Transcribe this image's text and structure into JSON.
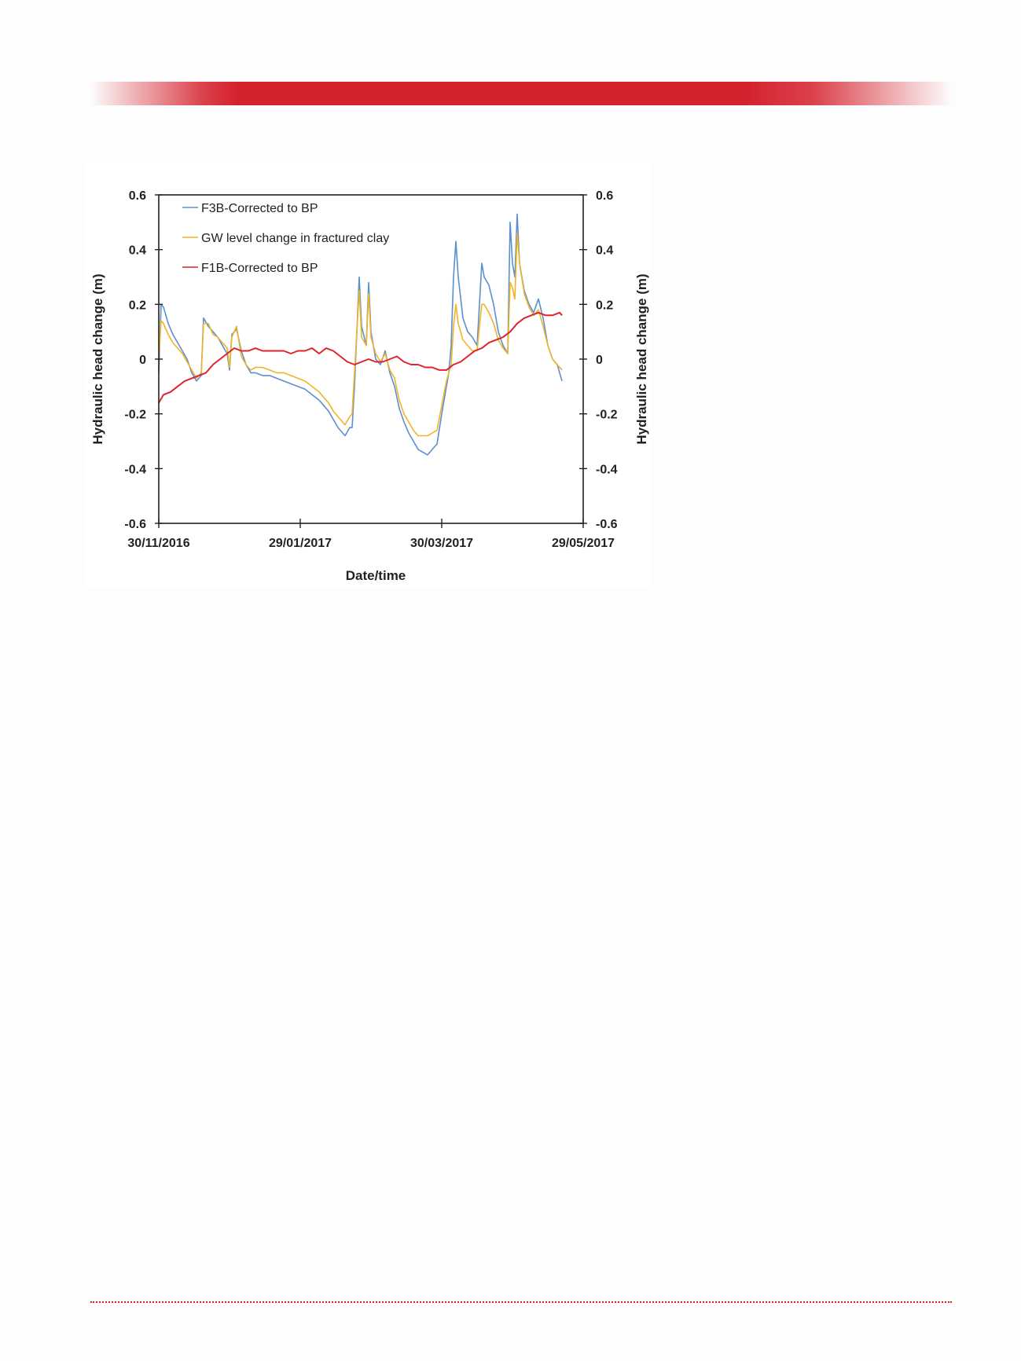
{
  "page": {
    "accent_color": "#d4222d"
  },
  "chart_data": {
    "type": "line",
    "title": "",
    "xlabel": "Date/time",
    "ylabel": "Hydraulic head change (m)",
    "y2label": "Hydraulic head change (m)",
    "x_ticks": [
      "30/11/2016",
      "29/01/2017",
      "30/03/2017",
      "29/05/2017"
    ],
    "x_range": [
      "2016-11-30",
      "2017-05-29"
    ],
    "ylim": [
      -0.6,
      0.6
    ],
    "y_ticks": [
      "0.6",
      "0.4",
      "0.2",
      "0",
      "-0.2",
      "-0.4",
      "-0.6"
    ],
    "y2_ticks": [
      "0.6",
      "0.4",
      "0.2",
      "0",
      "-0.2",
      "-0.4",
      "-0.6"
    ],
    "grid": false,
    "legend_position": "top-left",
    "series": [
      {
        "name": "F3B-Corrected to BP",
        "color": "#5b8fd0",
        "points": [
          [
            "2016-11-30",
            -0.05
          ],
          [
            "2016-12-01",
            0.2
          ],
          [
            "2016-12-02",
            0.19
          ],
          [
            "2016-12-04",
            0.13
          ],
          [
            "2016-12-06",
            0.09
          ],
          [
            "2016-12-08",
            0.06
          ],
          [
            "2016-12-10",
            0.03
          ],
          [
            "2016-12-12",
            0.0
          ],
          [
            "2016-12-14",
            -0.05
          ],
          [
            "2016-12-16",
            -0.08
          ],
          [
            "2016-12-18",
            -0.06
          ],
          [
            "2016-12-19",
            0.15
          ],
          [
            "2016-12-21",
            0.12
          ],
          [
            "2016-12-23",
            0.1
          ],
          [
            "2016-12-25",
            0.08
          ],
          [
            "2016-12-27",
            0.05
          ],
          [
            "2016-12-29",
            0.02
          ],
          [
            "2016-12-30",
            -0.04
          ],
          [
            "2016-12-31",
            0.09
          ],
          [
            "2017-01-02",
            0.11
          ],
          [
            "2017-01-04",
            0.03
          ],
          [
            "2017-01-06",
            -0.02
          ],
          [
            "2017-01-08",
            -0.05
          ],
          [
            "2017-01-10",
            -0.05
          ],
          [
            "2017-01-13",
            -0.06
          ],
          [
            "2017-01-16",
            -0.06
          ],
          [
            "2017-01-19",
            -0.07
          ],
          [
            "2017-01-22",
            -0.08
          ],
          [
            "2017-01-25",
            -0.09
          ],
          [
            "2017-01-28",
            -0.1
          ],
          [
            "2017-01-31",
            -0.11
          ],
          [
            "2017-02-03",
            -0.13
          ],
          [
            "2017-02-06",
            -0.15
          ],
          [
            "2017-02-08",
            -0.17
          ],
          [
            "2017-02-10",
            -0.19
          ],
          [
            "2017-02-12",
            -0.22
          ],
          [
            "2017-02-14",
            -0.25
          ],
          [
            "2017-02-16",
            -0.27
          ],
          [
            "2017-02-17",
            -0.28
          ],
          [
            "2017-02-19",
            -0.25
          ],
          [
            "2017-02-20",
            -0.25
          ],
          [
            "2017-02-21",
            -0.1
          ],
          [
            "2017-02-22",
            0.1
          ],
          [
            "2017-02-23",
            0.3
          ],
          [
            "2017-02-24",
            0.12
          ],
          [
            "2017-02-26",
            0.05
          ],
          [
            "2017-02-27",
            0.28
          ],
          [
            "2017-02-28",
            0.1
          ],
          [
            "2017-03-02",
            0.0
          ],
          [
            "2017-03-04",
            -0.02
          ],
          [
            "2017-03-06",
            0.03
          ],
          [
            "2017-03-08",
            -0.05
          ],
          [
            "2017-03-10",
            -0.1
          ],
          [
            "2017-03-12",
            -0.18
          ],
          [
            "2017-03-14",
            -0.23
          ],
          [
            "2017-03-16",
            -0.27
          ],
          [
            "2017-03-18",
            -0.3
          ],
          [
            "2017-03-20",
            -0.33
          ],
          [
            "2017-03-22",
            -0.34
          ],
          [
            "2017-03-24",
            -0.35
          ],
          [
            "2017-03-26",
            -0.33
          ],
          [
            "2017-03-28",
            -0.31
          ],
          [
            "2017-03-30",
            -0.2
          ],
          [
            "2017-04-01",
            -0.1
          ],
          [
            "2017-04-02",
            -0.05
          ],
          [
            "2017-04-03",
            0.05
          ],
          [
            "2017-04-04",
            0.3
          ],
          [
            "2017-04-05",
            0.43
          ],
          [
            "2017-04-06",
            0.3
          ],
          [
            "2017-04-08",
            0.15
          ],
          [
            "2017-04-10",
            0.1
          ],
          [
            "2017-04-12",
            0.08
          ],
          [
            "2017-04-14",
            0.05
          ],
          [
            "2017-04-15",
            0.2
          ],
          [
            "2017-04-16",
            0.35
          ],
          [
            "2017-04-17",
            0.3
          ],
          [
            "2017-04-19",
            0.27
          ],
          [
            "2017-04-21",
            0.2
          ],
          [
            "2017-04-23",
            0.1
          ],
          [
            "2017-04-25",
            0.05
          ],
          [
            "2017-04-27",
            0.02
          ],
          [
            "2017-04-28",
            0.5
          ],
          [
            "2017-04-29",
            0.35
          ],
          [
            "2017-04-30",
            0.3
          ],
          [
            "2017-05-01",
            0.53
          ],
          [
            "2017-05-02",
            0.35
          ],
          [
            "2017-05-04",
            0.25
          ],
          [
            "2017-05-06",
            0.2
          ],
          [
            "2017-05-08",
            0.17
          ],
          [
            "2017-05-10",
            0.22
          ],
          [
            "2017-05-12",
            0.15
          ],
          [
            "2017-05-14",
            0.05
          ],
          [
            "2017-05-16",
            0.0
          ],
          [
            "2017-05-18",
            -0.02
          ],
          [
            "2017-05-20",
            -0.08
          ]
        ]
      },
      {
        "name": "GW level change in fractured clay",
        "color": "#f0b429",
        "points": [
          [
            "2016-11-30",
            0.0
          ],
          [
            "2016-12-01",
            0.14
          ],
          [
            "2016-12-02",
            0.13
          ],
          [
            "2016-12-04",
            0.09
          ],
          [
            "2016-12-06",
            0.06
          ],
          [
            "2016-12-08",
            0.04
          ],
          [
            "2016-12-10",
            0.02
          ],
          [
            "2016-12-12",
            -0.01
          ],
          [
            "2016-12-14",
            -0.04
          ],
          [
            "2016-12-16",
            -0.07
          ],
          [
            "2016-12-18",
            -0.05
          ],
          [
            "2016-12-19",
            0.13
          ],
          [
            "2016-12-21",
            0.13
          ],
          [
            "2016-12-23",
            0.09
          ],
          [
            "2016-12-25",
            0.08
          ],
          [
            "2016-12-27",
            0.06
          ],
          [
            "2016-12-29",
            0.04
          ],
          [
            "2016-12-30",
            -0.03
          ],
          [
            "2016-12-31",
            0.08
          ],
          [
            "2017-01-02",
            0.12
          ],
          [
            "2017-01-04",
            0.01
          ],
          [
            "2017-01-06",
            -0.02
          ],
          [
            "2017-01-08",
            -0.04
          ],
          [
            "2017-01-10",
            -0.03
          ],
          [
            "2017-01-13",
            -0.03
          ],
          [
            "2017-01-16",
            -0.04
          ],
          [
            "2017-01-19",
            -0.05
          ],
          [
            "2017-01-22",
            -0.05
          ],
          [
            "2017-01-25",
            -0.06
          ],
          [
            "2017-01-28",
            -0.07
          ],
          [
            "2017-01-31",
            -0.08
          ],
          [
            "2017-02-03",
            -0.1
          ],
          [
            "2017-02-06",
            -0.12
          ],
          [
            "2017-02-08",
            -0.14
          ],
          [
            "2017-02-10",
            -0.16
          ],
          [
            "2017-02-12",
            -0.19
          ],
          [
            "2017-02-14",
            -0.21
          ],
          [
            "2017-02-16",
            -0.23
          ],
          [
            "2017-02-17",
            -0.24
          ],
          [
            "2017-02-19",
            -0.21
          ],
          [
            "2017-02-20",
            -0.2
          ],
          [
            "2017-02-21",
            -0.05
          ],
          [
            "2017-02-22",
            0.1
          ],
          [
            "2017-02-23",
            0.25
          ],
          [
            "2017-02-24",
            0.08
          ],
          [
            "2017-02-26",
            0.05
          ],
          [
            "2017-02-27",
            0.24
          ],
          [
            "2017-02-28",
            0.08
          ],
          [
            "2017-03-02",
            0.02
          ],
          [
            "2017-03-04",
            -0.01
          ],
          [
            "2017-03-06",
            0.02
          ],
          [
            "2017-03-08",
            -0.04
          ],
          [
            "2017-03-10",
            -0.07
          ],
          [
            "2017-03-12",
            -0.15
          ],
          [
            "2017-03-14",
            -0.2
          ],
          [
            "2017-03-16",
            -0.23
          ],
          [
            "2017-03-18",
            -0.26
          ],
          [
            "2017-03-20",
            -0.28
          ],
          [
            "2017-03-22",
            -0.28
          ],
          [
            "2017-03-24",
            -0.28
          ],
          [
            "2017-03-26",
            -0.27
          ],
          [
            "2017-03-28",
            -0.26
          ],
          [
            "2017-03-30",
            -0.17
          ],
          [
            "2017-04-01",
            -0.08
          ],
          [
            "2017-04-02",
            -0.05
          ],
          [
            "2017-04-03",
            -0.02
          ],
          [
            "2017-04-04",
            0.12
          ],
          [
            "2017-04-05",
            0.2
          ],
          [
            "2017-04-06",
            0.13
          ],
          [
            "2017-04-08",
            0.07
          ],
          [
            "2017-04-10",
            0.05
          ],
          [
            "2017-04-12",
            0.03
          ],
          [
            "2017-04-14",
            0.03
          ],
          [
            "2017-04-15",
            0.12
          ],
          [
            "2017-04-16",
            0.2
          ],
          [
            "2017-04-17",
            0.2
          ],
          [
            "2017-04-19",
            0.17
          ],
          [
            "2017-04-21",
            0.13
          ],
          [
            "2017-04-23",
            0.07
          ],
          [
            "2017-04-25",
            0.04
          ],
          [
            "2017-04-27",
            0.02
          ],
          [
            "2017-04-28",
            0.28
          ],
          [
            "2017-04-29",
            0.26
          ],
          [
            "2017-04-30",
            0.22
          ],
          [
            "2017-05-01",
            0.46
          ],
          [
            "2017-05-02",
            0.35
          ],
          [
            "2017-05-04",
            0.24
          ],
          [
            "2017-05-06",
            0.19
          ],
          [
            "2017-05-08",
            0.16
          ],
          [
            "2017-05-10",
            0.18
          ],
          [
            "2017-05-12",
            0.12
          ],
          [
            "2017-05-14",
            0.05
          ],
          [
            "2017-05-16",
            0.0
          ],
          [
            "2017-05-18",
            -0.02
          ],
          [
            "2017-05-20",
            -0.04
          ]
        ]
      },
      {
        "name": "F1B-Corrected to BP",
        "color": "#e0242b",
        "points": [
          [
            "2016-11-30",
            -0.16
          ],
          [
            "2016-12-02",
            -0.13
          ],
          [
            "2016-12-05",
            -0.12
          ],
          [
            "2016-12-08",
            -0.1
          ],
          [
            "2016-12-11",
            -0.08
          ],
          [
            "2016-12-14",
            -0.07
          ],
          [
            "2016-12-17",
            -0.06
          ],
          [
            "2016-12-20",
            -0.05
          ],
          [
            "2016-12-23",
            -0.02
          ],
          [
            "2016-12-26",
            0.0
          ],
          [
            "2016-12-29",
            0.02
          ],
          [
            "2017-01-01",
            0.04
          ],
          [
            "2017-01-04",
            0.03
          ],
          [
            "2017-01-07",
            0.03
          ],
          [
            "2017-01-10",
            0.04
          ],
          [
            "2017-01-13",
            0.03
          ],
          [
            "2017-01-16",
            0.03
          ],
          [
            "2017-01-19",
            0.03
          ],
          [
            "2017-01-22",
            0.03
          ],
          [
            "2017-01-25",
            0.02
          ],
          [
            "2017-01-28",
            0.03
          ],
          [
            "2017-01-31",
            0.03
          ],
          [
            "2017-02-03",
            0.04
          ],
          [
            "2017-02-06",
            0.02
          ],
          [
            "2017-02-09",
            0.04
          ],
          [
            "2017-02-12",
            0.03
          ],
          [
            "2017-02-15",
            0.01
          ],
          [
            "2017-02-18",
            -0.01
          ],
          [
            "2017-02-21",
            -0.02
          ],
          [
            "2017-02-24",
            -0.01
          ],
          [
            "2017-02-27",
            0.0
          ],
          [
            "2017-03-02",
            -0.01
          ],
          [
            "2017-03-05",
            -0.01
          ],
          [
            "2017-03-08",
            0.0
          ],
          [
            "2017-03-11",
            0.01
          ],
          [
            "2017-03-14",
            -0.01
          ],
          [
            "2017-03-17",
            -0.02
          ],
          [
            "2017-03-20",
            -0.02
          ],
          [
            "2017-03-23",
            -0.03
          ],
          [
            "2017-03-26",
            -0.03
          ],
          [
            "2017-03-29",
            -0.04
          ],
          [
            "2017-04-01",
            -0.04
          ],
          [
            "2017-04-04",
            -0.02
          ],
          [
            "2017-04-07",
            -0.01
          ],
          [
            "2017-04-10",
            0.01
          ],
          [
            "2017-04-13",
            0.03
          ],
          [
            "2017-04-16",
            0.04
          ],
          [
            "2017-04-19",
            0.06
          ],
          [
            "2017-04-22",
            0.07
          ],
          [
            "2017-04-25",
            0.08
          ],
          [
            "2017-04-28",
            0.1
          ],
          [
            "2017-05-01",
            0.13
          ],
          [
            "2017-05-04",
            0.15
          ],
          [
            "2017-05-07",
            0.16
          ],
          [
            "2017-05-10",
            0.17
          ],
          [
            "2017-05-13",
            0.16
          ],
          [
            "2017-05-16",
            0.16
          ],
          [
            "2017-05-19",
            0.17
          ],
          [
            "2017-05-20",
            0.16
          ]
        ]
      }
    ]
  }
}
